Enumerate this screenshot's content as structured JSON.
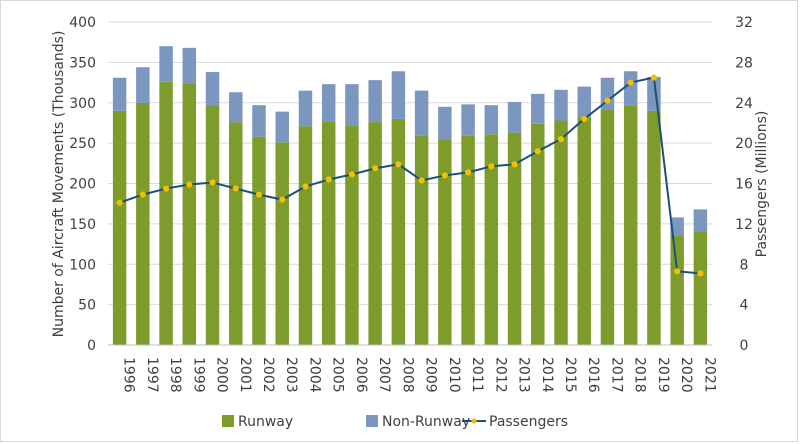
{
  "chart_data": {
    "type": "bar",
    "stacked": true,
    "categories": [
      "1996",
      "1997",
      "1998",
      "1999",
      "2000",
      "2001",
      "2002",
      "2003",
      "2004",
      "2005",
      "2006",
      "2007",
      "2008",
      "2009",
      "2010",
      "2011",
      "2012",
      "2013",
      "2014",
      "2015",
      "2016",
      "2017",
      "2018",
      "2019",
      "2020",
      "2021"
    ],
    "series": [
      {
        "name": "Runway",
        "type": "bar",
        "axis": "left",
        "color": "#7e9c2c",
        "values": [
          290,
          300,
          326,
          324,
          296,
          276,
          258,
          251,
          271,
          277,
          272,
          276,
          280,
          259,
          255,
          259,
          261,
          263,
          274,
          278,
          282,
          291,
          297,
          290,
          135,
          141
        ]
      },
      {
        "name": "Non-Runway",
        "type": "bar",
        "axis": "left",
        "color": "#7b96bf",
        "values": [
          41,
          44,
          44,
          44,
          42,
          37,
          39,
          38,
          44,
          46,
          51,
          52,
          59,
          56,
          40,
          39,
          36,
          38,
          37,
          38,
          38,
          40,
          42,
          42,
          23,
          27
        ]
      },
      {
        "name": "Passengers",
        "type": "line",
        "axis": "right",
        "color": "#1f4e79",
        "marker_color": "#f2c000",
        "values": [
          14.1,
          14.9,
          15.5,
          15.9,
          16.1,
          15.5,
          14.9,
          14.4,
          15.7,
          16.4,
          16.9,
          17.5,
          17.9,
          16.3,
          16.8,
          17.1,
          17.7,
          17.9,
          19.2,
          20.4,
          22.4,
          24.2,
          26.0,
          26.5,
          7.3,
          7.1
        ]
      }
    ],
    "ylabel": "Number of Aircraft Movements (Thousands)",
    "y2label": "Passengers (Millions)",
    "ylim": [
      0,
      400
    ],
    "y2lim": [
      0,
      32
    ],
    "yticks": [
      "0",
      "50",
      "100",
      "150",
      "200",
      "250",
      "300",
      "350",
      "400"
    ],
    "y2ticks": [
      "0",
      "4",
      "8",
      "12",
      "16",
      "20",
      "24",
      "28",
      "32"
    ],
    "grid": true,
    "legend_position": "bottom"
  }
}
